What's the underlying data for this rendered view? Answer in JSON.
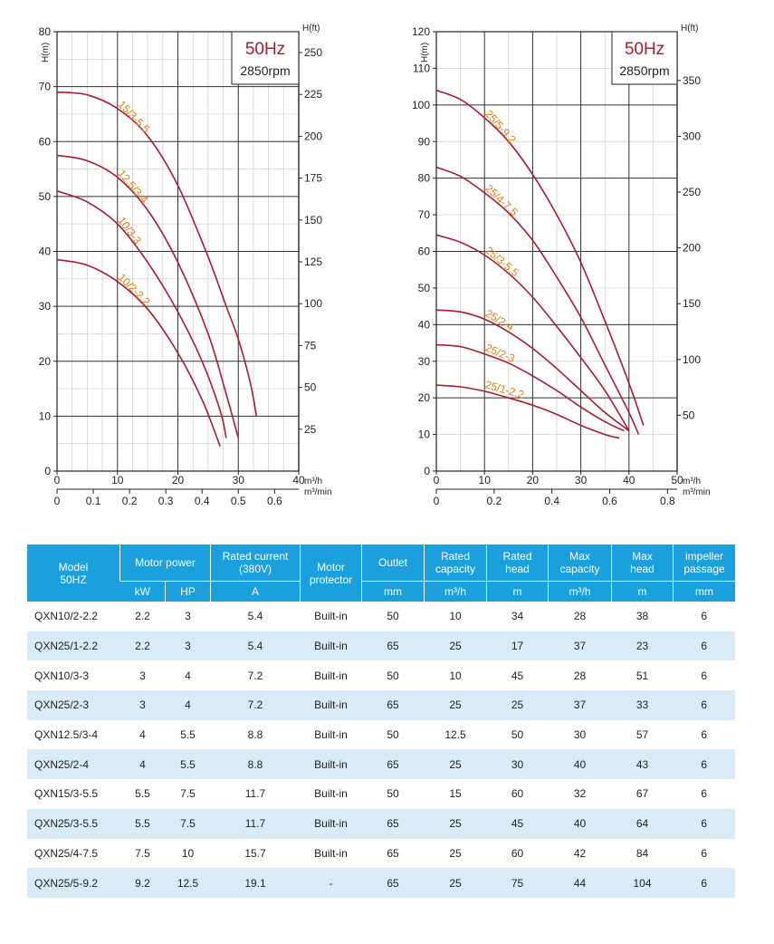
{
  "colors": {
    "curve": "#a81c2e",
    "curve_label": "#e07f12",
    "grid": "#333333",
    "table_header": "#1aa0dc",
    "table_stripe": "#d8ebf7",
    "badge_hz": "#a81c2e"
  },
  "chart_data": [
    {
      "type": "line",
      "badge": {
        "hz": "50Hz",
        "rpm": "2850rpm"
      },
      "ylabel": "H(m)",
      "y2label": "H(ft)",
      "xlabel": "m³/h",
      "x2label": "m³/min",
      "xlim": [
        0,
        40
      ],
      "ylim": [
        0,
        80
      ],
      "x_ticks": [
        "0",
        "10",
        "20",
        "30",
        "40"
      ],
      "y_ticks": [
        "0",
        "10",
        "20",
        "30",
        "40",
        "50",
        "60",
        "70",
        "80"
      ],
      "y2_ticks": [
        "25",
        "50",
        "75",
        "100",
        "125",
        "150",
        "175",
        "200",
        "225",
        "250"
      ],
      "x2_ticks": [
        "0",
        "0.1",
        "0.2",
        "0.3",
        "0.4",
        "0.5",
        "0.6"
      ],
      "series": [
        {
          "name": "15/3-5.5",
          "points": [
            [
              0,
              69
            ],
            [
              5,
              68.5
            ],
            [
              10,
              66
            ],
            [
              15,
              61
            ],
            [
              20,
              52
            ],
            [
              25,
              39
            ],
            [
              28,
              30
            ],
            [
              30,
              24
            ],
            [
              32,
              16
            ],
            [
              33,
              10
            ]
          ]
        },
        {
          "name": "12.5/3-4",
          "points": [
            [
              0,
              57.5
            ],
            [
              5,
              56.5
            ],
            [
              10,
              53.5
            ],
            [
              15,
              47.5
            ],
            [
              20,
              38
            ],
            [
              25,
              25
            ],
            [
              28,
              14
            ],
            [
              30,
              6
            ]
          ]
        },
        {
          "name": "10/3-3",
          "points": [
            [
              0,
              51
            ],
            [
              5,
              49
            ],
            [
              10,
              45
            ],
            [
              15,
              38
            ],
            [
              20,
              29
            ],
            [
              24,
              20
            ],
            [
              27,
              11
            ],
            [
              28,
              6
            ]
          ]
        },
        {
          "name": "10/2-2.2",
          "points": [
            [
              0,
              38.5
            ],
            [
              5,
              37.5
            ],
            [
              10,
              34.5
            ],
            [
              15,
              29.5
            ],
            [
              20,
              21.5
            ],
            [
              24,
              13
            ],
            [
              27,
              4.5
            ]
          ]
        }
      ]
    },
    {
      "type": "line",
      "badge": {
        "hz": "50Hz",
        "rpm": "2850rpm"
      },
      "ylabel": "H(m)",
      "y2label": "H(ft)",
      "xlabel": "m³/h",
      "x2label": "m³/min",
      "xlim": [
        0,
        50
      ],
      "ylim": [
        0,
        120
      ],
      "x_ticks": [
        "0",
        "10",
        "20",
        "30",
        "40",
        "50"
      ],
      "y_ticks": [
        "0",
        "10",
        "20",
        "30",
        "40",
        "50",
        "60",
        "70",
        "80",
        "90",
        "100",
        "110",
        "120"
      ],
      "y2_ticks": [
        "50",
        "100",
        "150",
        "200",
        "250",
        "300",
        "350"
      ],
      "x2_ticks": [
        "0",
        "0.2",
        "0.4",
        "0.6",
        "0.8"
      ],
      "series": [
        {
          "name": "25/5-9.2",
          "points": [
            [
              0,
              104
            ],
            [
              5,
              101.5
            ],
            [
              10,
              96.5
            ],
            [
              15,
              90
            ],
            [
              20,
              81
            ],
            [
              25,
              70
            ],
            [
              30,
              57
            ],
            [
              35,
              41
            ],
            [
              40,
              24
            ],
            [
              43,
              12.5
            ]
          ]
        },
        {
          "name": "25/4-7.5",
          "points": [
            [
              0,
              83
            ],
            [
              5,
              80.5
            ],
            [
              10,
              76
            ],
            [
              15,
              70.5
            ],
            [
              20,
              63
            ],
            [
              25,
              53
            ],
            [
              30,
              42
            ],
            [
              35,
              29
            ],
            [
              40,
              16
            ],
            [
              42,
              10
            ]
          ]
        },
        {
          "name": "25/3-5.5",
          "points": [
            [
              0,
              64.5
            ],
            [
              5,
              62.5
            ],
            [
              10,
              59
            ],
            [
              15,
              54
            ],
            [
              20,
              47.5
            ],
            [
              25,
              39.5
            ],
            [
              30,
              31
            ],
            [
              35,
              22
            ],
            [
              40,
              11
            ]
          ]
        },
        {
          "name": "25/2-4",
          "points": [
            [
              0,
              44
            ],
            [
              5,
              43.5
            ],
            [
              10,
              41.5
            ],
            [
              15,
              38
            ],
            [
              20,
              33.5
            ],
            [
              25,
              28
            ],
            [
              30,
              22
            ],
            [
              35,
              16
            ],
            [
              40,
              11
            ]
          ]
        },
        {
          "name": "25/2-3",
          "points": [
            [
              0,
              34.5
            ],
            [
              5,
              34
            ],
            [
              10,
              32
            ],
            [
              15,
              29.5
            ],
            [
              20,
              26
            ],
            [
              25,
              22
            ],
            [
              30,
              17.5
            ],
            [
              35,
              13.5
            ],
            [
              39,
              11
            ]
          ]
        },
        {
          "name": "25/1-2.2",
          "points": [
            [
              0,
              23.5
            ],
            [
              5,
              23
            ],
            [
              10,
              21.8
            ],
            [
              15,
              20
            ],
            [
              20,
              18
            ],
            [
              25,
              15.5
            ],
            [
              30,
              12.5
            ],
            [
              35,
              10
            ],
            [
              38,
              9
            ]
          ]
        }
      ]
    }
  ],
  "table": {
    "header": {
      "model": "Model\n50HZ",
      "motor_power": "Motor power",
      "rated_current": "Rated current\n(380V)",
      "motor_protector": "Motor\nprotector",
      "outlet": "Outlet",
      "rated_capacity": "Rated\ncapacity",
      "rated_head": "Rated\nhead",
      "max_capacity": "Max\ncapacity",
      "max_head": "Max\nhead",
      "impeller": "impeller\npassage"
    },
    "units": {
      "kw": "kW",
      "hp": "HP",
      "a": "A",
      "outlet": "mm",
      "rated_capacity": "m³/h",
      "rated_head": "m",
      "max_capacity": "m³/h",
      "max_head": "m",
      "impeller": "mm"
    },
    "rows": [
      [
        "QXN10/2-2.2",
        "2.2",
        "3",
        "5.4",
        "Built-in",
        "50",
        "10",
        "34",
        "28",
        "38",
        "6"
      ],
      [
        "QXN25/1-2.2",
        "2.2",
        "3",
        "5.4",
        "Built-in",
        "65",
        "25",
        "17",
        "37",
        "23",
        "6"
      ],
      [
        "QXN10/3-3",
        "3",
        "4",
        "7.2",
        "Built-in",
        "50",
        "10",
        "45",
        "28",
        "51",
        "6"
      ],
      [
        "QXN25/2-3",
        "3",
        "4",
        "7.2",
        "Built-in",
        "65",
        "25",
        "25",
        "37",
        "33",
        "6"
      ],
      [
        "QXN12.5/3-4",
        "4",
        "5.5",
        "8.8",
        "Built-in",
        "50",
        "12.5",
        "50",
        "30",
        "57",
        "6"
      ],
      [
        "QXN25/2-4",
        "4",
        "5.5",
        "8.8",
        "Built-in",
        "65",
        "25",
        "30",
        "40",
        "43",
        "6"
      ],
      [
        "QXN15/3-5.5",
        "5.5",
        "7.5",
        "11.7",
        "Built-in",
        "50",
        "15",
        "60",
        "32",
        "67",
        "6"
      ],
      [
        "QXN25/3-5.5",
        "5.5",
        "7.5",
        "11.7",
        "Built-in",
        "65",
        "25",
        "45",
        "40",
        "64",
        "6"
      ],
      [
        "QXN25/4-7.5",
        "7.5",
        "10",
        "15.7",
        "Built-in",
        "65",
        "25",
        "60",
        "42",
        "84",
        "6"
      ],
      [
        "QXN25/5-9.2",
        "9.2",
        "12.5",
        "19.1",
        "-",
        "65",
        "25",
        "75",
        "44",
        "104",
        "6"
      ]
    ]
  }
}
